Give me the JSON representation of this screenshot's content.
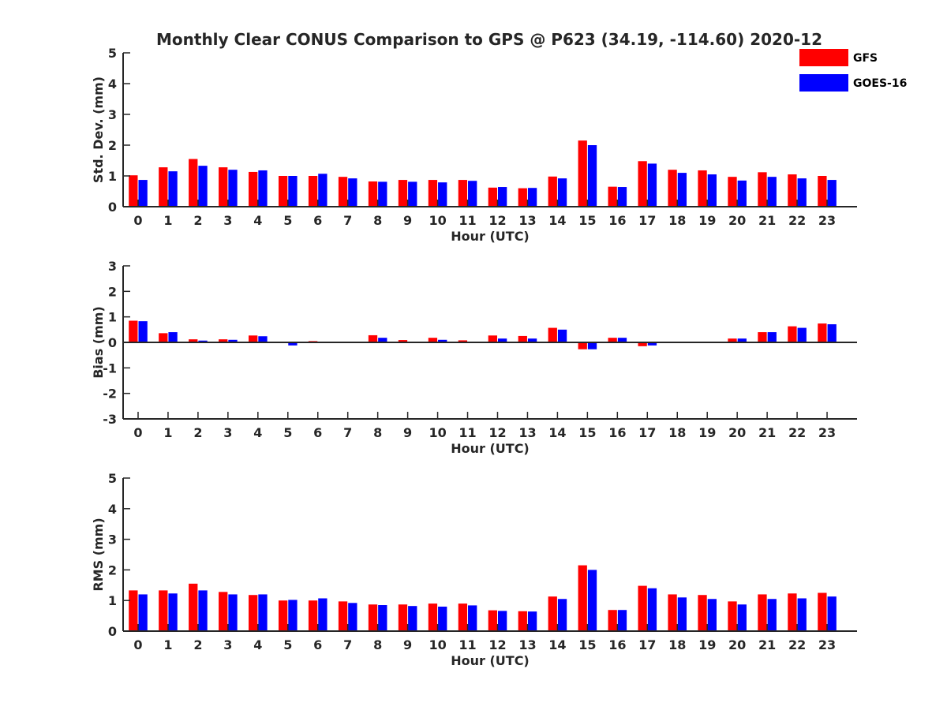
{
  "chart_data": {
    "type": "bar",
    "title": "Monthly Clear CONUS Comparison to GPS @ P623 (34.19, -114.60) 2020-12",
    "legend": {
      "placement": "top-right",
      "entries": [
        {
          "name": "GFS",
          "color": "#ff0000"
        },
        {
          "name": "GOES-16",
          "color": "#0000ff"
        }
      ]
    },
    "categories": [
      "0",
      "1",
      "2",
      "3",
      "4",
      "5",
      "6",
      "7",
      "8",
      "9",
      "10",
      "11",
      "12",
      "13",
      "14",
      "15",
      "16",
      "17",
      "18",
      "19",
      "20",
      "21",
      "22",
      "23"
    ],
    "panels": [
      {
        "id": "std-dev",
        "ylabel": "Std. Dev. (mm)",
        "xlabel": "Hour (UTC)",
        "ylim": [
          0,
          5
        ],
        "yticks": [
          "0",
          "1",
          "2",
          "3",
          "4",
          "5"
        ],
        "series": [
          {
            "name": "GFS",
            "color": "#ff0000",
            "values": [
              1.02,
              1.28,
              1.55,
              1.28,
              1.13,
              1.0,
              1.0,
              0.97,
              0.82,
              0.87,
              0.87,
              0.87,
              0.62,
              0.6,
              0.98,
              2.15,
              0.65,
              1.48,
              1.2,
              1.18,
              0.97,
              1.12,
              1.05,
              1.0
            ]
          },
          {
            "name": "GOES-16",
            "color": "#0000ff",
            "values": [
              0.87,
              1.15,
              1.33,
              1.2,
              1.18,
              1.0,
              1.07,
              0.92,
              0.81,
              0.81,
              0.79,
              0.84,
              0.64,
              0.61,
              0.92,
              2.0,
              0.64,
              1.4,
              1.1,
              1.05,
              0.85,
              0.97,
              0.92,
              0.87
            ]
          }
        ]
      },
      {
        "id": "bias",
        "ylabel": "Bias (mm)",
        "xlabel": "Hour (UTC)",
        "ylim": [
          -3,
          3
        ],
        "yticks": [
          "-3",
          "-2",
          "-1",
          "0",
          "1",
          "2",
          "3"
        ],
        "series": [
          {
            "name": "GFS",
            "color": "#ff0000",
            "values": [
              0.85,
              0.36,
              0.12,
              0.12,
              0.27,
              0.0,
              0.05,
              0.02,
              0.28,
              0.09,
              0.18,
              0.08,
              0.27,
              0.25,
              0.57,
              -0.27,
              0.18,
              -0.15,
              0.0,
              0.0,
              0.15,
              0.4,
              0.63,
              0.74
            ]
          },
          {
            "name": "GOES-16",
            "color": "#0000ff",
            "values": [
              0.83,
              0.4,
              0.07,
              0.1,
              0.24,
              -0.12,
              0.02,
              0.0,
              0.18,
              0.03,
              0.1,
              0.0,
              0.15,
              0.15,
              0.5,
              -0.27,
              0.18,
              -0.12,
              0.0,
              0.0,
              0.15,
              0.4,
              0.57,
              0.71
            ]
          }
        ]
      },
      {
        "id": "rms",
        "ylabel": "RMS (mm)",
        "xlabel": "Hour (UTC)",
        "ylim": [
          0,
          5
        ],
        "yticks": [
          "0",
          "1",
          "2",
          "3",
          "4",
          "5"
        ],
        "series": [
          {
            "name": "GFS",
            "color": "#ff0000",
            "values": [
              1.33,
              1.33,
              1.55,
              1.28,
              1.18,
              1.0,
              1.0,
              0.97,
              0.87,
              0.87,
              0.9,
              0.9,
              0.68,
              0.65,
              1.13,
              2.15,
              0.69,
              1.48,
              1.2,
              1.18,
              0.97,
              1.2,
              1.23,
              1.25
            ]
          },
          {
            "name": "GOES-16",
            "color": "#0000ff",
            "values": [
              1.2,
              1.23,
              1.33,
              1.2,
              1.2,
              1.02,
              1.07,
              0.92,
              0.85,
              0.82,
              0.8,
              0.84,
              0.66,
              0.64,
              1.05,
              2.0,
              0.69,
              1.4,
              1.1,
              1.05,
              0.87,
              1.05,
              1.07,
              1.13
            ]
          }
        ]
      }
    ]
  }
}
